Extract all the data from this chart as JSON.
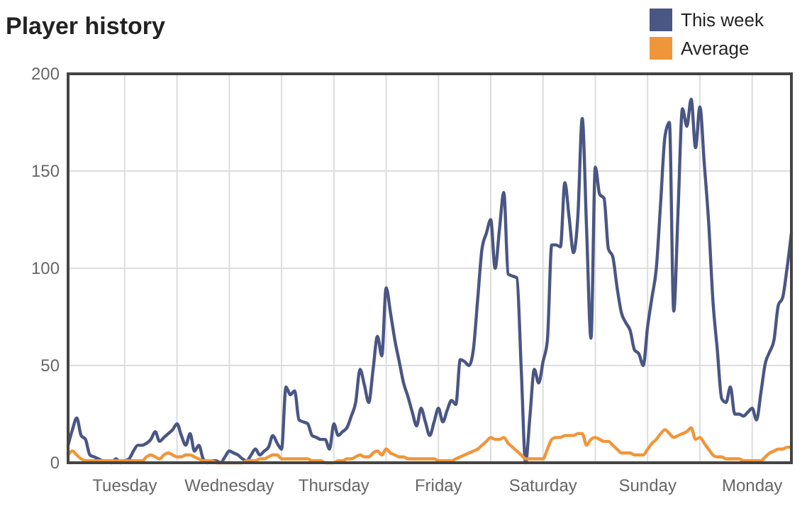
{
  "chart_data": {
    "type": "line",
    "title": "Player history",
    "categories": [
      null,
      null,
      null,
      null,
      null,
      null,
      null,
      null,
      null,
      null,
      null,
      null,
      null,
      "Tuesday",
      null,
      null,
      null,
      null,
      null,
      null,
      null,
      null,
      null,
      null,
      null,
      null,
      null,
      null,
      null,
      null,
      null,
      null,
      null,
      null,
      null,
      null,
      null,
      "Wednesday",
      null,
      null,
      null,
      null,
      null,
      null,
      null,
      null,
      null,
      null,
      null,
      null,
      null,
      null,
      null,
      null,
      null,
      null,
      null,
      null,
      null,
      null,
      null,
      "Thursday",
      null,
      null,
      null,
      null,
      null,
      null,
      null,
      null,
      null,
      null,
      null,
      null,
      null,
      null,
      null,
      null,
      null,
      null,
      null,
      null,
      null,
      null,
      null,
      "Friday",
      null,
      null,
      null,
      null,
      null,
      null,
      null,
      null,
      null,
      null,
      null,
      null,
      null,
      null,
      null,
      null,
      null,
      null,
      null,
      null,
      null,
      null,
      null,
      "Saturday",
      null,
      null,
      null,
      null,
      null,
      null,
      null,
      null,
      null,
      null,
      null,
      null,
      null,
      null,
      null,
      null,
      null,
      null,
      null,
      null,
      null,
      null,
      null,
      "Sunday",
      null,
      null,
      null,
      null,
      null,
      null,
      null,
      null,
      null,
      null,
      null,
      null,
      null,
      null,
      null,
      null,
      null,
      null,
      null,
      null,
      null,
      null,
      null,
      "Monday",
      null,
      null,
      null,
      null,
      null,
      null,
      null,
      null,
      null
    ],
    "ylim": [
      0,
      200
    ],
    "yticks": [
      0,
      50,
      100,
      150,
      200
    ],
    "grid": true,
    "legend": "top right",
    "series": [
      {
        "name": "This week",
        "color": "#4a5683",
        "values": [
          9,
          17,
          23,
          14,
          12,
          4,
          3,
          2,
          1,
          1,
          0,
          2,
          0,
          1,
          2,
          6,
          9,
          9,
          10,
          12,
          16,
          11,
          13,
          15,
          17,
          20,
          14,
          9,
          15,
          6,
          9,
          2,
          0,
          1,
          1,
          0,
          3,
          6,
          5,
          4,
          2,
          1,
          4,
          7,
          4,
          6,
          8,
          14,
          10,
          7,
          39,
          35,
          37,
          22,
          21,
          20,
          14,
          13,
          12,
          12,
          7,
          20,
          14,
          16,
          18,
          24,
          31,
          48,
          40,
          31,
          48,
          65,
          55,
          90,
          77,
          63,
          52,
          41,
          34,
          26,
          19,
          28,
          21,
          14,
          21,
          28,
          21,
          27,
          32,
          30,
          53,
          52,
          50,
          58,
          84,
          110,
          118,
          125,
          100,
          120,
          139,
          97,
          96,
          95,
          48,
          0,
          24,
          48,
          41,
          52,
          63,
          112,
          112,
          111,
          144,
          126,
          108,
          127,
          177,
          120,
          64,
          152,
          138,
          136,
          110,
          106,
          90,
          77,
          72,
          68,
          58,
          56,
          50,
          70,
          85,
          100,
          134,
          168,
          175,
          78,
          130,
          182,
          173,
          187,
          162,
          183,
          154,
          124,
          83,
          58,
          33,
          31,
          39,
          25,
          25,
          24,
          26,
          28,
          22,
          36,
          51,
          57,
          63,
          81,
          85,
          100,
          118
        ]
      },
      {
        "name": "Average",
        "color": "#f0963a",
        "values": [
          4,
          6,
          4,
          2,
          1,
          1,
          1,
          1,
          1,
          1,
          1,
          1,
          1,
          1,
          1,
          1,
          1,
          1,
          3,
          4,
          3,
          2,
          4,
          5,
          4,
          3,
          3,
          4,
          4,
          3,
          2,
          1,
          1,
          1,
          0,
          0,
          0,
          0,
          0,
          0,
          0,
          1,
          1,
          1,
          2,
          2,
          3,
          4,
          4,
          2,
          2,
          2,
          2,
          2,
          2,
          2,
          1,
          1,
          1,
          0,
          0,
          0,
          1,
          1,
          2,
          2,
          3,
          4,
          3,
          3,
          5,
          6,
          4,
          7,
          5,
          4,
          3,
          3,
          2,
          2,
          2,
          2,
          2,
          2,
          2,
          1,
          1,
          1,
          1,
          2,
          3,
          4,
          5,
          6,
          7,
          9,
          11,
          13,
          12,
          12,
          13,
          10,
          8,
          6,
          4,
          2,
          2,
          2,
          2,
          2,
          7,
          12,
          13,
          13,
          14,
          14,
          14,
          15,
          15,
          9,
          12,
          13,
          12,
          11,
          11,
          9,
          7,
          5,
          5,
          5,
          4,
          4,
          4,
          7,
          10,
          12,
          15,
          17,
          15,
          13,
          14,
          15,
          16,
          18,
          12,
          13,
          10,
          7,
          4,
          3,
          3,
          2,
          2,
          2,
          2,
          1,
          1,
          1,
          1,
          1,
          3,
          5,
          6,
          7,
          7,
          8,
          8
        ]
      }
    ]
  }
}
